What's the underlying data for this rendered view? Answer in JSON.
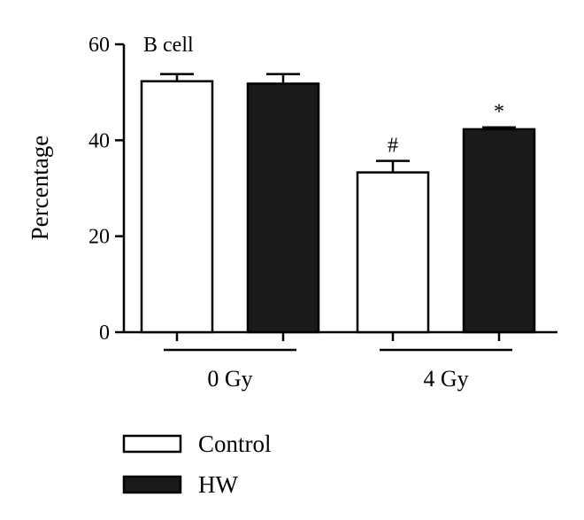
{
  "chart_data": {
    "type": "bar",
    "title": "B cell",
    "ylabel": "Percentage",
    "xlabel": "",
    "ylim": [
      0,
      60
    ],
    "yticks": [
      0,
      20,
      40,
      60
    ],
    "categories": [
      "0 Gy",
      "4 Gy"
    ],
    "series": [
      {
        "name": "Control",
        "values": [
          52.3,
          33.3
        ],
        "errors": [
          1.5,
          2.4
        ],
        "annotations": [
          "",
          "#"
        ],
        "color": "#ffffff"
      },
      {
        "name": "HW",
        "values": [
          51.8,
          42.3
        ],
        "errors": [
          2.0,
          0.4
        ],
        "annotations": [
          "",
          "*"
        ],
        "color": "#1a1a1a"
      }
    ],
    "legend_position": "bottom-left",
    "grid": false
  }
}
